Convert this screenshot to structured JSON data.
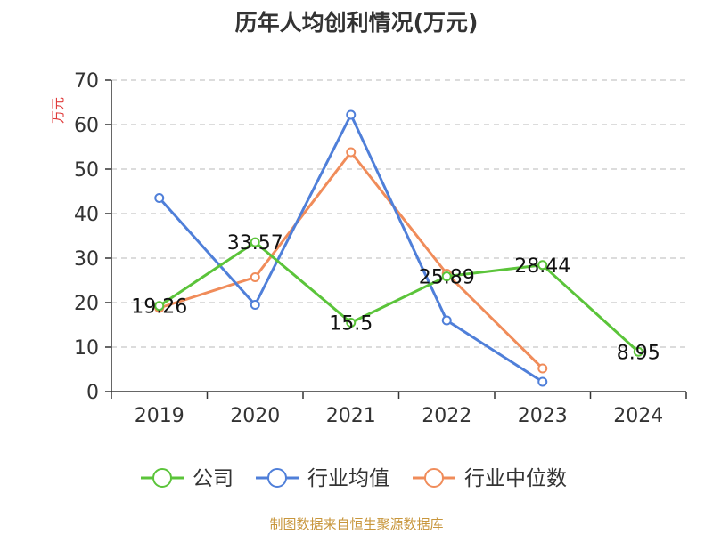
{
  "chart_data": {
    "type": "line",
    "title": "历年人均创利情况(万元)",
    "ylabel": "万元",
    "xlabel": "",
    "categories": [
      "2019",
      "2020",
      "2021",
      "2022",
      "2023",
      "2024"
    ],
    "ylim": [
      0,
      70
    ],
    "yticks": [
      0,
      10,
      20,
      30,
      40,
      50,
      60,
      70
    ],
    "grid": true,
    "legend_position": "bottom",
    "series": [
      {
        "name": "公司",
        "color": "#5bc43a",
        "values": [
          19.26,
          33.57,
          15.5,
          25.89,
          28.44,
          8.95
        ],
        "show_labels": true
      },
      {
        "name": "行业均值",
        "color": "#4f7fd9",
        "values": [
          43.5,
          19.5,
          62.2,
          16.0,
          2.2,
          null
        ],
        "show_labels": false
      },
      {
        "name": "行业中位数",
        "color": "#f08c5a",
        "values": [
          18.8,
          25.7,
          53.8,
          26.5,
          5.2,
          null
        ],
        "show_labels": false
      }
    ]
  },
  "source_note": "制图数据来自恒生聚源数据库"
}
